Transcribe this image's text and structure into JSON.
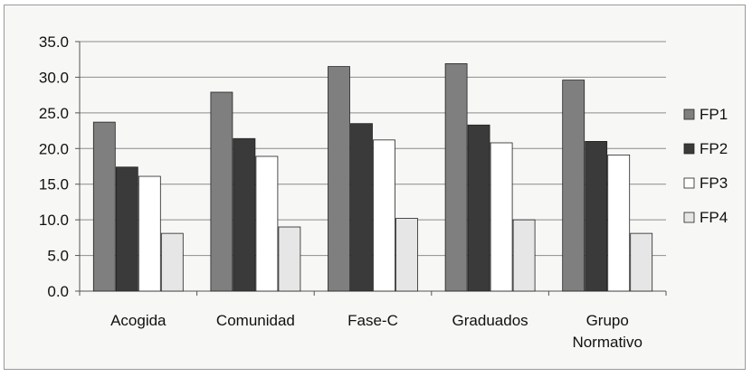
{
  "chart_data": {
    "type": "bar",
    "title": "",
    "xlabel": "",
    "ylabel": "",
    "categories": [
      "Acogida",
      "Comunidad",
      "Fase-C",
      "Graduados",
      "Grupo Normativo"
    ],
    "category_lines": [
      [
        "Acogida"
      ],
      [
        "Comunidad"
      ],
      [
        "Fase-C"
      ],
      [
        "Graduados"
      ],
      [
        "Grupo",
        "Normativo"
      ]
    ],
    "series": [
      {
        "name": "FP1",
        "values": [
          23.7,
          27.9,
          31.5,
          31.9,
          29.6
        ],
        "color": "#7f7f7f"
      },
      {
        "name": "FP2",
        "values": [
          17.4,
          21.4,
          23.5,
          23.3,
          21.0
        ],
        "color": "#3a3a3a"
      },
      {
        "name": "FP3",
        "values": [
          16.1,
          18.9,
          21.2,
          20.8,
          19.1
        ],
        "color": "#ffffff"
      },
      {
        "name": "FP4",
        "values": [
          8.1,
          9.0,
          10.2,
          10.0,
          8.1
        ],
        "color": "#e6e6e6"
      }
    ],
    "yticks": [
      "0.0",
      "5.0",
      "10.0",
      "15.0",
      "20.0",
      "25.0",
      "30.0",
      "35.0"
    ],
    "ylim": [
      0,
      35
    ],
    "grid": true,
    "legend_position": "right"
  }
}
